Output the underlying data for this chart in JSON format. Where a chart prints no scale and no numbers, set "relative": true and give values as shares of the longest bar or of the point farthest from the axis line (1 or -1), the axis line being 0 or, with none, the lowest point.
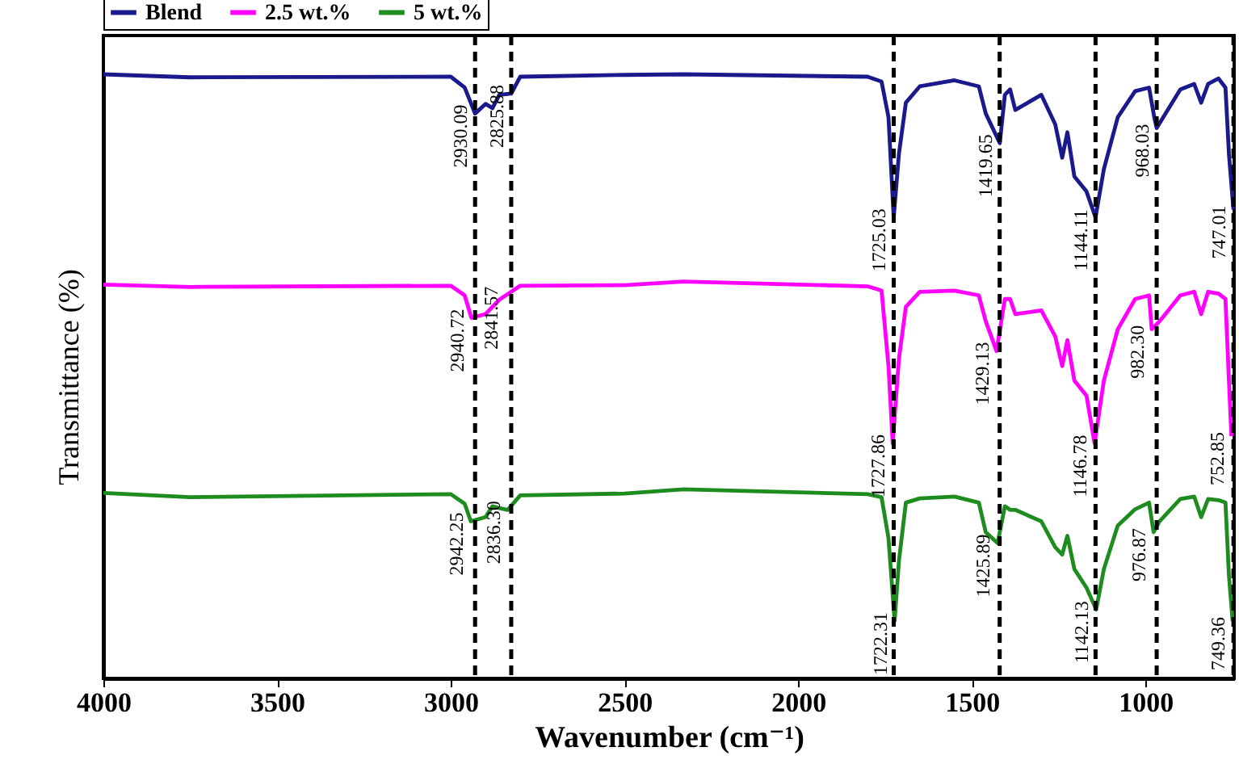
{
  "chart_data": {
    "type": "line",
    "relative": true,
    "xlabel": "Wavenumber (cm⁻¹)",
    "ylabel": "Transmittance (%)",
    "xlim": [
      4000,
      745
    ],
    "xticks": [
      4000,
      3500,
      3000,
      2500,
      2000,
      1500,
      1000
    ],
    "grid": false,
    "legend": "top",
    "line_style": "solid",
    "series": [
      {
        "name": "Blend",
        "color": "#1a1a8c",
        "x": [
          4000,
          3750,
          3000,
          2960,
          2930.09,
          2900,
          2880,
          2860,
          2825.88,
          2800,
          2500,
          2330,
          1800,
          1760,
          1740,
          1725.03,
          1710,
          1690,
          1650,
          1550,
          1480,
          1460,
          1419.65,
          1405,
          1390,
          1375,
          1300,
          1260,
          1240,
          1225,
          1205,
          1170,
          1144.11,
          1120,
          1080,
          1030,
          990,
          975,
          968.03,
          900,
          860,
          840,
          820,
          790,
          770,
          760,
          747.01
        ],
        "values": [
          1.0,
          0.995,
          0.996,
          0.978,
          0.935,
          0.951,
          0.944,
          0.966,
          0.968,
          0.996,
          0.999,
          1.0,
          0.996,
          0.988,
          0.929,
          0.763,
          0.868,
          0.953,
          0.98,
          0.99,
          0.98,
          0.935,
          0.886,
          0.966,
          0.975,
          0.941,
          0.966,
          0.917,
          0.862,
          0.904,
          0.831,
          0.806,
          0.763,
          0.843,
          0.929,
          0.972,
          0.978,
          0.929,
          0.911,
          0.975,
          0.984,
          0.953,
          0.984,
          0.993,
          0.978,
          0.868,
          0.776
        ]
      },
      {
        "name": "2.5 wt.%",
        "color": "#ff00ff",
        "x": [
          4000,
          3750,
          3000,
          2960,
          2940.72,
          2900,
          2880,
          2860,
          2841.57,
          2800,
          2500,
          2330,
          1800,
          1760,
          1740,
          1727.86,
          1710,
          1690,
          1650,
          1550,
          1480,
          1460,
          1429.13,
          1405,
          1390,
          1375,
          1300,
          1260,
          1240,
          1225,
          1205,
          1170,
          1146.78,
          1120,
          1080,
          1030,
          990,
          982.3,
          960,
          900,
          860,
          840,
          820,
          790,
          770,
          760,
          752.85
        ],
        "values": [
          0.652,
          0.648,
          0.65,
          0.634,
          0.597,
          0.603,
          0.615,
          0.627,
          0.634,
          0.65,
          0.651,
          0.657,
          0.649,
          0.642,
          0.517,
          0.389,
          0.529,
          0.615,
          0.64,
          0.642,
          0.634,
          0.591,
          0.542,
          0.628,
          0.628,
          0.603,
          0.609,
          0.566,
          0.517,
          0.56,
          0.493,
          0.468,
          0.389,
          0.493,
          0.578,
          0.628,
          0.634,
          0.578,
          0.591,
          0.634,
          0.64,
          0.603,
          0.64,
          0.637,
          0.628,
          0.493,
          0.401
        ]
      },
      {
        "name": "5 wt.%",
        "color": "#1e8c1e",
        "x": [
          4000,
          3750,
          3000,
          2960,
          2942.25,
          2900,
          2880,
          2860,
          2836.3,
          2800,
          2500,
          2330,
          1800,
          1760,
          1740,
          1722.31,
          1710,
          1690,
          1650,
          1550,
          1480,
          1460,
          1425.89,
          1405,
          1390,
          1375,
          1300,
          1260,
          1240,
          1225,
          1205,
          1170,
          1142.13,
          1120,
          1080,
          1030,
          990,
          976.87,
          960,
          900,
          860,
          840,
          820,
          790,
          770,
          760,
          749.36
        ],
        "values": [
          0.307,
          0.3,
          0.305,
          0.289,
          0.26,
          0.267,
          0.285,
          0.282,
          0.279,
          0.303,
          0.306,
          0.313,
          0.305,
          0.3,
          0.232,
          0.095,
          0.194,
          0.291,
          0.298,
          0.301,
          0.291,
          0.242,
          0.224,
          0.285,
          0.279,
          0.279,
          0.26,
          0.217,
          0.205,
          0.236,
          0.181,
          0.15,
          0.114,
          0.181,
          0.253,
          0.28,
          0.291,
          0.242,
          0.26,
          0.297,
          0.301,
          0.267,
          0.297,
          0.295,
          0.291,
          0.17,
          0.095
        ]
      }
    ],
    "ref_lines": [
      {
        "axis": "x",
        "value": 2930,
        "color": "#000000",
        "line_style": "dashed"
      },
      {
        "axis": "x",
        "value": 2826,
        "color": "#000000",
        "line_style": "dashed"
      },
      {
        "axis": "x",
        "value": 1725,
        "color": "#000000",
        "line_style": "dashed"
      },
      {
        "axis": "x",
        "value": 1420,
        "color": "#000000",
        "line_style": "dashed"
      },
      {
        "axis": "x",
        "value": 1144,
        "color": "#000000",
        "line_style": "dashed"
      },
      {
        "axis": "x",
        "value": 968,
        "color": "#000000",
        "line_style": "dashed"
      },
      {
        "axis": "x",
        "value": 747,
        "color": "#000000",
        "line_style": "dashed"
      }
    ],
    "annotations": [
      {
        "text": "2930.09",
        "x": 2930.09,
        "y": 0.935
      },
      {
        "text": "2825.88",
        "x": 2825.88,
        "y": 0.968
      },
      {
        "text": "1725.03",
        "x": 1725.03,
        "y": 0.763
      },
      {
        "text": "1419.65",
        "x": 1419.65,
        "y": 0.886
      },
      {
        "text": "1144.11",
        "x": 1144.11,
        "y": 0.763
      },
      {
        "text": "968.03",
        "x": 968.03,
        "y": 0.911
      },
      {
        "text": "747.01",
        "x": 747.01,
        "y": 0.776
      },
      {
        "text": "2940.72",
        "x": 2940.72,
        "y": 0.597
      },
      {
        "text": "2841.57",
        "x": 2841.57,
        "y": 0.634
      },
      {
        "text": "1727.86",
        "x": 1727.86,
        "y": 0.389
      },
      {
        "text": "1429.13",
        "x": 1429.13,
        "y": 0.542
      },
      {
        "text": "1146.78",
        "x": 1146.78,
        "y": 0.389
      },
      {
        "text": "982.30",
        "x": 982.3,
        "y": 0.578
      },
      {
        "text": "752.85",
        "x": 752.85,
        "y": 0.401
      },
      {
        "text": "2942.25",
        "x": 2942.25,
        "y": 0.26
      },
      {
        "text": "2836.30",
        "x": 2836.3,
        "y": 0.279
      },
      {
        "text": "1722.31",
        "x": 1722.31,
        "y": 0.095
      },
      {
        "text": "1425.89",
        "x": 1425.89,
        "y": 0.224
      },
      {
        "text": "1142.13",
        "x": 1142.13,
        "y": 0.114
      },
      {
        "text": "976.87",
        "x": 976.87,
        "y": 0.242
      },
      {
        "text": "749.36",
        "x": 749.36,
        "y": 0.095
      }
    ]
  }
}
